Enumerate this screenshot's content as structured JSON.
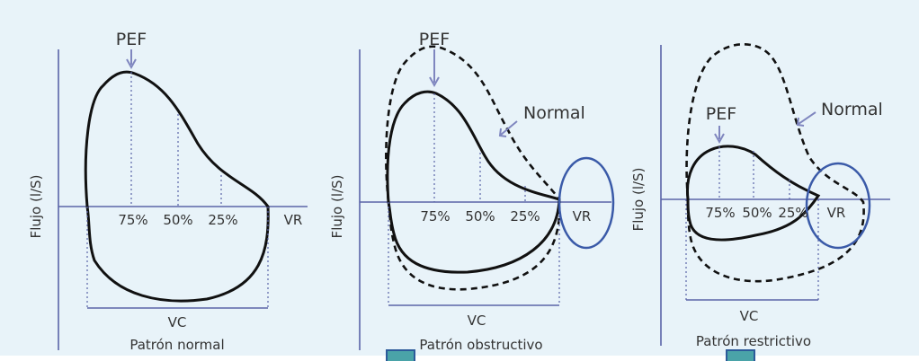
{
  "panels": [
    {
      "title": "Patrón normal",
      "ylabel": "Flujo (l/S)",
      "peak_label": "PEF",
      "pct": [
        "75%",
        "50%",
        "25%"
      ],
      "vr": "VR",
      "vc": "VC"
    },
    {
      "title": "Patrón obstructivo",
      "ylabel": "Flujo (l/S)",
      "peak_label": "PEF",
      "pct": [
        "75%",
        "50%",
        "25%"
      ],
      "vr": "VR",
      "vc": "VC",
      "reference": "Normal"
    },
    {
      "title": "Patrón restrictivo",
      "ylabel": "Flujo (l/S)",
      "peak_label": "PEF",
      "pct": [
        "75%",
        "50%",
        "25%"
      ],
      "vr": "VR",
      "vc": "VC",
      "reference": "Normal"
    }
  ],
  "colors": {
    "background": "#e8f3f9",
    "axis": "#5a64a8",
    "highlight": "#3a5aa8",
    "marker": "#4aa3a8"
  }
}
